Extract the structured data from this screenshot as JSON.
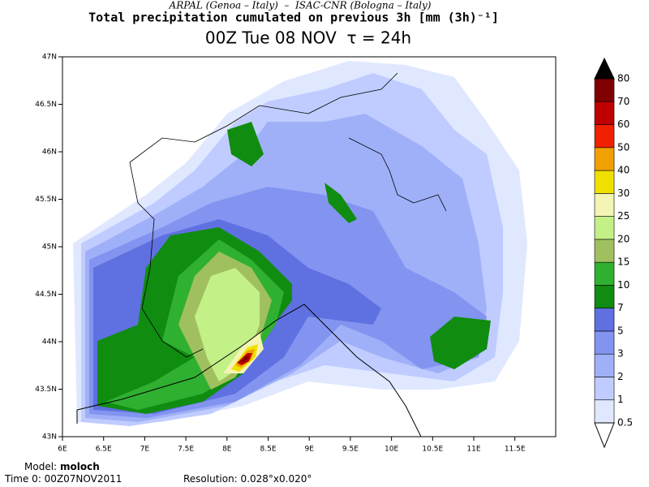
{
  "header": {
    "credit": "ARPAL (Genoa – Italy)  –  ISAC-CNR (Bologna – Italy)",
    "title": "Total precipitation cumulated on previous 3h [mm (3h)⁻¹]",
    "subtitle": "00Z Tue 08 NOV  τ = 24h"
  },
  "map": {
    "lat_labels": [
      "47N",
      "46.5N",
      "46N",
      "45.5N",
      "45N",
      "44.5N",
      "44N",
      "43.5N",
      "43N"
    ],
    "lon_labels": [
      "6E",
      "6.5E",
      "7E",
      "7.5E",
      "8E",
      "8.5E",
      "9E",
      "9.5E",
      "10E",
      "10.5E",
      "11E",
      "11.5E"
    ]
  },
  "colorbar": {
    "levels": [
      "0.5",
      "1",
      "2",
      "3",
      "5",
      "7",
      "10",
      "15",
      "20",
      "25",
      "30",
      "40",
      "50",
      "60",
      "70",
      "80"
    ],
    "colors": [
      "#e0e8ff",
      "#c0ccff",
      "#a0b0f8",
      "#8294f0",
      "#5f70e0",
      "#108c10",
      "#30b030",
      "#a0c060",
      "#c4f088",
      "#f4f4b4",
      "#f0e000",
      "#f0a000",
      "#f02000",
      "#c00000",
      "#800000"
    ],
    "over_color": "#000000",
    "under_color": "#ffffff"
  },
  "footer": {
    "model_label": "Model:",
    "model": "moloch",
    "time": "Time 0: 00Z07NOV2011",
    "resolution": "Resolution: 0.028°x0.020°"
  }
}
